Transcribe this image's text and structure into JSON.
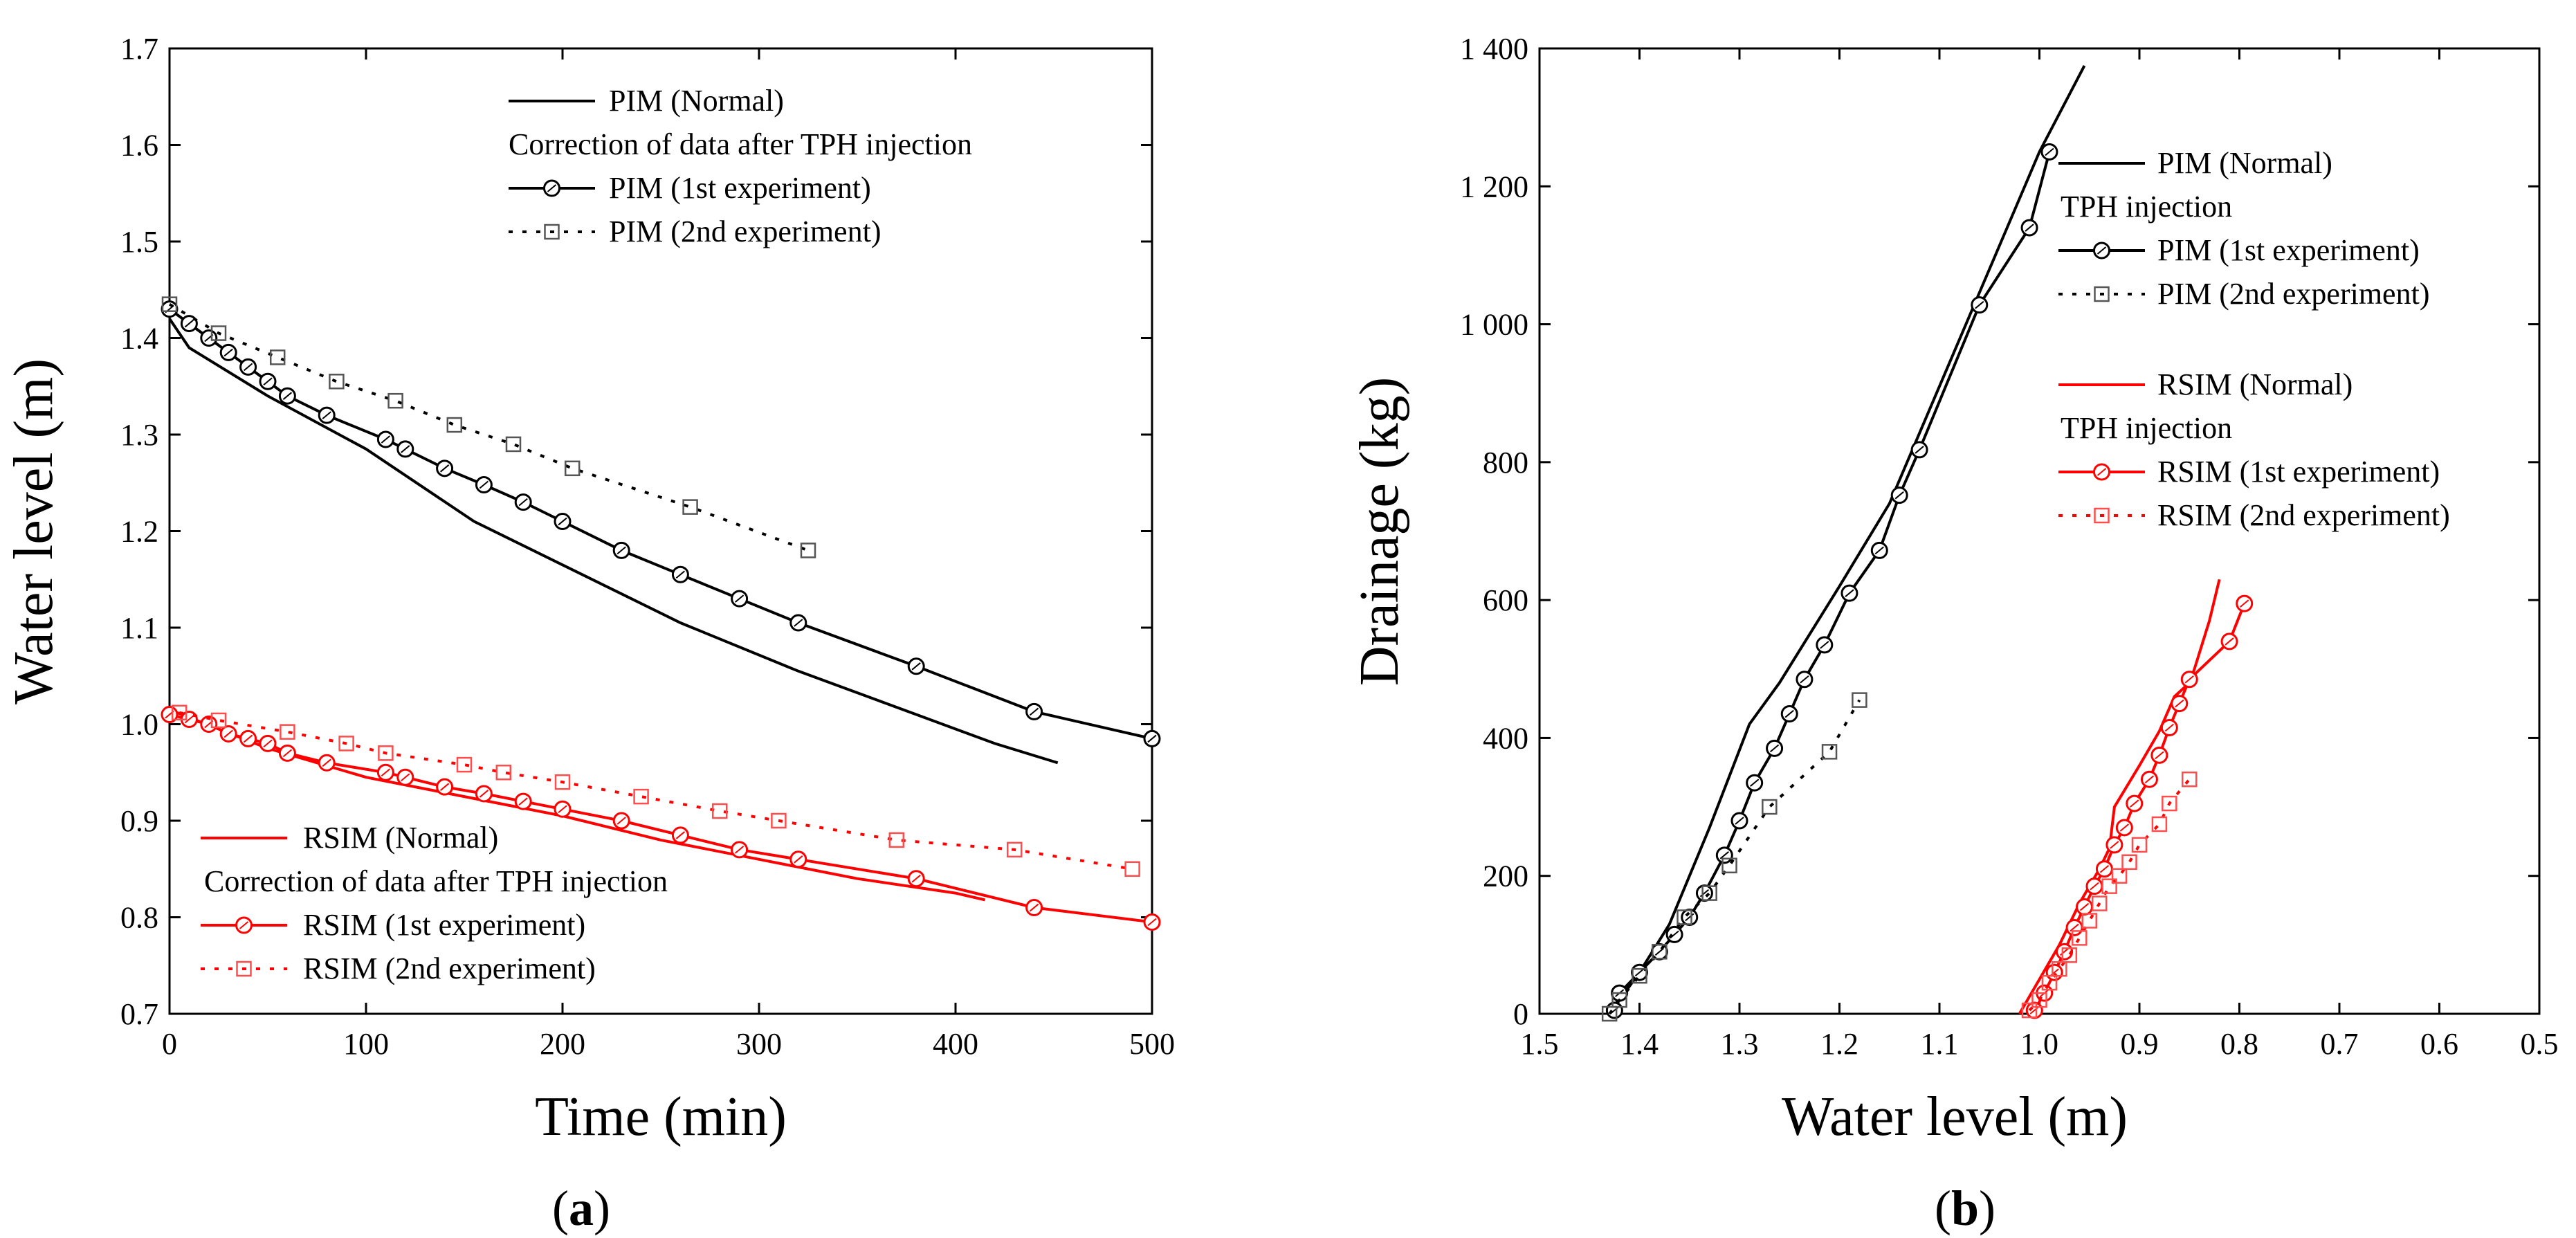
{
  "chart_data": [
    {
      "type": "line",
      "panel_label": "(a)",
      "xlabel": "Time (min)",
      "ylabel": "Water level (m)",
      "xlim": [
        0,
        500
      ],
      "ylim": [
        0.7,
        1.7
      ],
      "x_ticks": [
        "0",
        "100",
        "200",
        "300",
        "400",
        "500"
      ],
      "y_ticks": [
        "0.7",
        "0.8",
        "0.9",
        "1.0",
        "1.1",
        "1.2",
        "1.3",
        "1.4",
        "1.5",
        "1.6",
        "1.7"
      ],
      "legend_groups": [
        {
          "entries": [
            "PIM (Normal)",
            "Correction of data after TPH injection",
            "PIM (1st experiment)",
            "PIM (2nd experiment)"
          ]
        },
        {
          "entries": [
            "RSIM (Normal)",
            "Correction of data after TPH injection",
            "RSIM (1st experiment)",
            "RSIM (2nd experiment)"
          ]
        }
      ],
      "series": [
        {
          "name": "PIM (Normal)",
          "color": "#000000",
          "style": "solid",
          "points": [
            [
              0,
              1.42
            ],
            [
              10,
              1.39
            ],
            [
              50,
              1.34
            ],
            [
              100,
              1.285
            ],
            [
              155,
              1.21
            ],
            [
              200,
              1.165
            ],
            [
              260,
              1.105
            ],
            [
              320,
              1.055
            ],
            [
              380,
              1.01
            ],
            [
              420,
              0.98
            ],
            [
              452,
              0.96
            ]
          ]
        },
        {
          "name": "PIM (1st experiment)",
          "color": "#000000",
          "style": "solid-circle",
          "points": [
            [
              0,
              1.43
            ],
            [
              10,
              1.415
            ],
            [
              20,
              1.4
            ],
            [
              30,
              1.385
            ],
            [
              40,
              1.37
            ],
            [
              50,
              1.355
            ],
            [
              60,
              1.34
            ],
            [
              80,
              1.32
            ],
            [
              110,
              1.295
            ],
            [
              120,
              1.285
            ],
            [
              140,
              1.265
            ],
            [
              160,
              1.248
            ],
            [
              180,
              1.23
            ],
            [
              200,
              1.21
            ],
            [
              230,
              1.18
            ],
            [
              260,
              1.155
            ],
            [
              290,
              1.13
            ],
            [
              320,
              1.105
            ],
            [
              380,
              1.06
            ],
            [
              440,
              1.013
            ],
            [
              500,
              0.985
            ]
          ]
        },
        {
          "name": "PIM (2nd experiment)",
          "color": "#000000",
          "style": "dotted-square",
          "points": [
            [
              0,
              1.435
            ],
            [
              25,
              1.405
            ],
            [
              55,
              1.38
            ],
            [
              85,
              1.355
            ],
            [
              115,
              1.335
            ],
            [
              145,
              1.31
            ],
            [
              175,
              1.29
            ],
            [
              205,
              1.265
            ],
            [
              265,
              1.225
            ],
            [
              325,
              1.18
            ]
          ]
        },
        {
          "name": "RSIM (Normal)",
          "color": "#ff0000",
          "style": "solid",
          "points": [
            [
              0,
              1.015
            ],
            [
              50,
              0.975
            ],
            [
              100,
              0.945
            ],
            [
              150,
              0.925
            ],
            [
              200,
              0.905
            ],
            [
              250,
              0.88
            ],
            [
              300,
              0.86
            ],
            [
              350,
              0.84
            ],
            [
              400,
              0.825
            ],
            [
              415,
              0.818
            ]
          ]
        },
        {
          "name": "RSIM (1st experiment)",
          "color": "#ff0000",
          "style": "solid-circle",
          "points": [
            [
              0,
              1.01
            ],
            [
              10,
              1.005
            ],
            [
              20,
              1.0
            ],
            [
              30,
              0.99
            ],
            [
              40,
              0.985
            ],
            [
              50,
              0.98
            ],
            [
              60,
              0.97
            ],
            [
              80,
              0.96
            ],
            [
              110,
              0.95
            ],
            [
              120,
              0.945
            ],
            [
              140,
              0.935
            ],
            [
              160,
              0.928
            ],
            [
              180,
              0.92
            ],
            [
              200,
              0.912
            ],
            [
              230,
              0.9
            ],
            [
              260,
              0.885
            ],
            [
              290,
              0.87
            ],
            [
              320,
              0.86
            ],
            [
              380,
              0.84
            ],
            [
              440,
              0.81
            ],
            [
              500,
              0.795
            ]
          ]
        },
        {
          "name": "RSIM (2nd experiment)",
          "color": "#ff0000",
          "style": "dotted-square",
          "points": [
            [
              5,
              1.012
            ],
            [
              25,
              1.004
            ],
            [
              60,
              0.992
            ],
            [
              90,
              0.98
            ],
            [
              110,
              0.97
            ],
            [
              150,
              0.958
            ],
            [
              170,
              0.95
            ],
            [
              200,
              0.94
            ],
            [
              240,
              0.925
            ],
            [
              280,
              0.91
            ],
            [
              310,
              0.9
            ],
            [
              370,
              0.88
            ],
            [
              430,
              0.87
            ],
            [
              490,
              0.85
            ]
          ]
        }
      ]
    },
    {
      "type": "line",
      "panel_label": "(b)",
      "xlabel": "Water level (m)",
      "ylabel": "Drainage (kg)",
      "xlim": [
        1.5,
        0.5
      ],
      "ylim": [
        0,
        1400
      ],
      "x_ticks": [
        "1.5",
        "1.4",
        "1.3",
        "1.2",
        "1.1",
        "1.0",
        "0.9",
        "0.8",
        "0.7",
        "0.6",
        "0.5"
      ],
      "y_ticks": [
        "0",
        "200",
        "400",
        "600",
        "800",
        "1 000",
        "1 200",
        "1 400"
      ],
      "legend_groups": [
        {
          "entries": [
            "PIM (Normal)",
            "TPH injection",
            "PIM (1st experiment)",
            "PIM (2nd experiment)"
          ]
        },
        {
          "entries": [
            "RSIM (Normal)",
            "TPH injection",
            "RSIM (1st experiment)",
            "RSIM (2nd experiment)"
          ]
        }
      ],
      "series": [
        {
          "name": "PIM (Normal)",
          "color": "#000000",
          "style": "solid",
          "points": [
            [
              1.43,
              0
            ],
            [
              1.4,
              60
            ],
            [
              1.37,
              130
            ],
            [
              1.33,
              270
            ],
            [
              1.29,
              420
            ],
            [
              1.26,
              480
            ],
            [
              1.2,
              620
            ],
            [
              1.15,
              740
            ],
            [
              1.1,
              910
            ],
            [
              1.05,
              1080
            ],
            [
              1.0,
              1250
            ],
            [
              0.955,
              1375
            ]
          ]
        },
        {
          "name": "PIM (1st experiment)",
          "color": "#000000",
          "style": "solid-circle",
          "points": [
            [
              1.425,
              5
            ],
            [
              1.42,
              30
            ],
            [
              1.4,
              60
            ],
            [
              1.38,
              90
            ],
            [
              1.365,
              115
            ],
            [
              1.35,
              140
            ],
            [
              1.335,
              175
            ],
            [
              1.315,
              230
            ],
            [
              1.3,
              280
            ],
            [
              1.285,
              335
            ],
            [
              1.265,
              385
            ],
            [
              1.25,
              435
            ],
            [
              1.235,
              485
            ],
            [
              1.215,
              535
            ],
            [
              1.19,
              610
            ],
            [
              1.16,
              672
            ],
            [
              1.14,
              752
            ],
            [
              1.12,
              818
            ],
            [
              1.06,
              1028
            ],
            [
              1.01,
              1140
            ],
            [
              0.99,
              1250
            ]
          ]
        },
        {
          "name": "PIM (2nd experiment)",
          "color": "#000000",
          "style": "dotted-square",
          "points": [
            [
              1.43,
              0
            ],
            [
              1.42,
              20
            ],
            [
              1.4,
              55
            ],
            [
              1.38,
              90
            ],
            [
              1.355,
              140
            ],
            [
              1.33,
              175
            ],
            [
              1.31,
              215
            ],
            [
              1.27,
              300
            ],
            [
              1.21,
              380
            ],
            [
              1.18,
              455
            ]
          ]
        },
        {
          "name": "RSIM (Normal)",
          "color": "#ff0000",
          "style": "solid",
          "points": [
            [
              1.02,
              0
            ],
            [
              1.0,
              50
            ],
            [
              0.98,
              100
            ],
            [
              0.96,
              160
            ],
            [
              0.94,
              210
            ],
            [
              0.93,
              240
            ],
            [
              0.925,
              300
            ],
            [
              0.9,
              360
            ],
            [
              0.88,
              410
            ],
            [
              0.865,
              460
            ],
            [
              0.85,
              480
            ],
            [
              0.845,
              500
            ],
            [
              0.83,
              570
            ],
            [
              0.82,
              630
            ]
          ]
        },
        {
          "name": "RSIM (1st experiment)",
          "color": "#ff0000",
          "style": "solid-circle",
          "points": [
            [
              1.005,
              5
            ],
            [
              0.995,
              30
            ],
            [
              0.985,
              60
            ],
            [
              0.975,
              90
            ],
            [
              0.965,
              125
            ],
            [
              0.955,
              155
            ],
            [
              0.945,
              185
            ],
            [
              0.935,
              210
            ],
            [
              0.925,
              245
            ],
            [
              0.915,
              270
            ],
            [
              0.905,
              305
            ],
            [
              0.89,
              340
            ],
            [
              0.88,
              375
            ],
            [
              0.87,
              415
            ],
            [
              0.86,
              450
            ],
            [
              0.85,
              485
            ],
            [
              0.81,
              540
            ],
            [
              0.795,
              595
            ]
          ]
        },
        {
          "name": "RSIM (2nd experiment)",
          "color": "#ff0000",
          "style": "dotted-square",
          "points": [
            [
              1.01,
              5
            ],
            [
              1.0,
              20
            ],
            [
              0.99,
              45
            ],
            [
              0.98,
              65
            ],
            [
              0.97,
              85
            ],
            [
              0.96,
              110
            ],
            [
              0.95,
              135
            ],
            [
              0.94,
              160
            ],
            [
              0.93,
              185
            ],
            [
              0.92,
              200
            ],
            [
              0.91,
              220
            ],
            [
              0.9,
              245
            ],
            [
              0.88,
              275
            ],
            [
              0.87,
              305
            ],
            [
              0.85,
              340
            ]
          ]
        }
      ]
    }
  ]
}
